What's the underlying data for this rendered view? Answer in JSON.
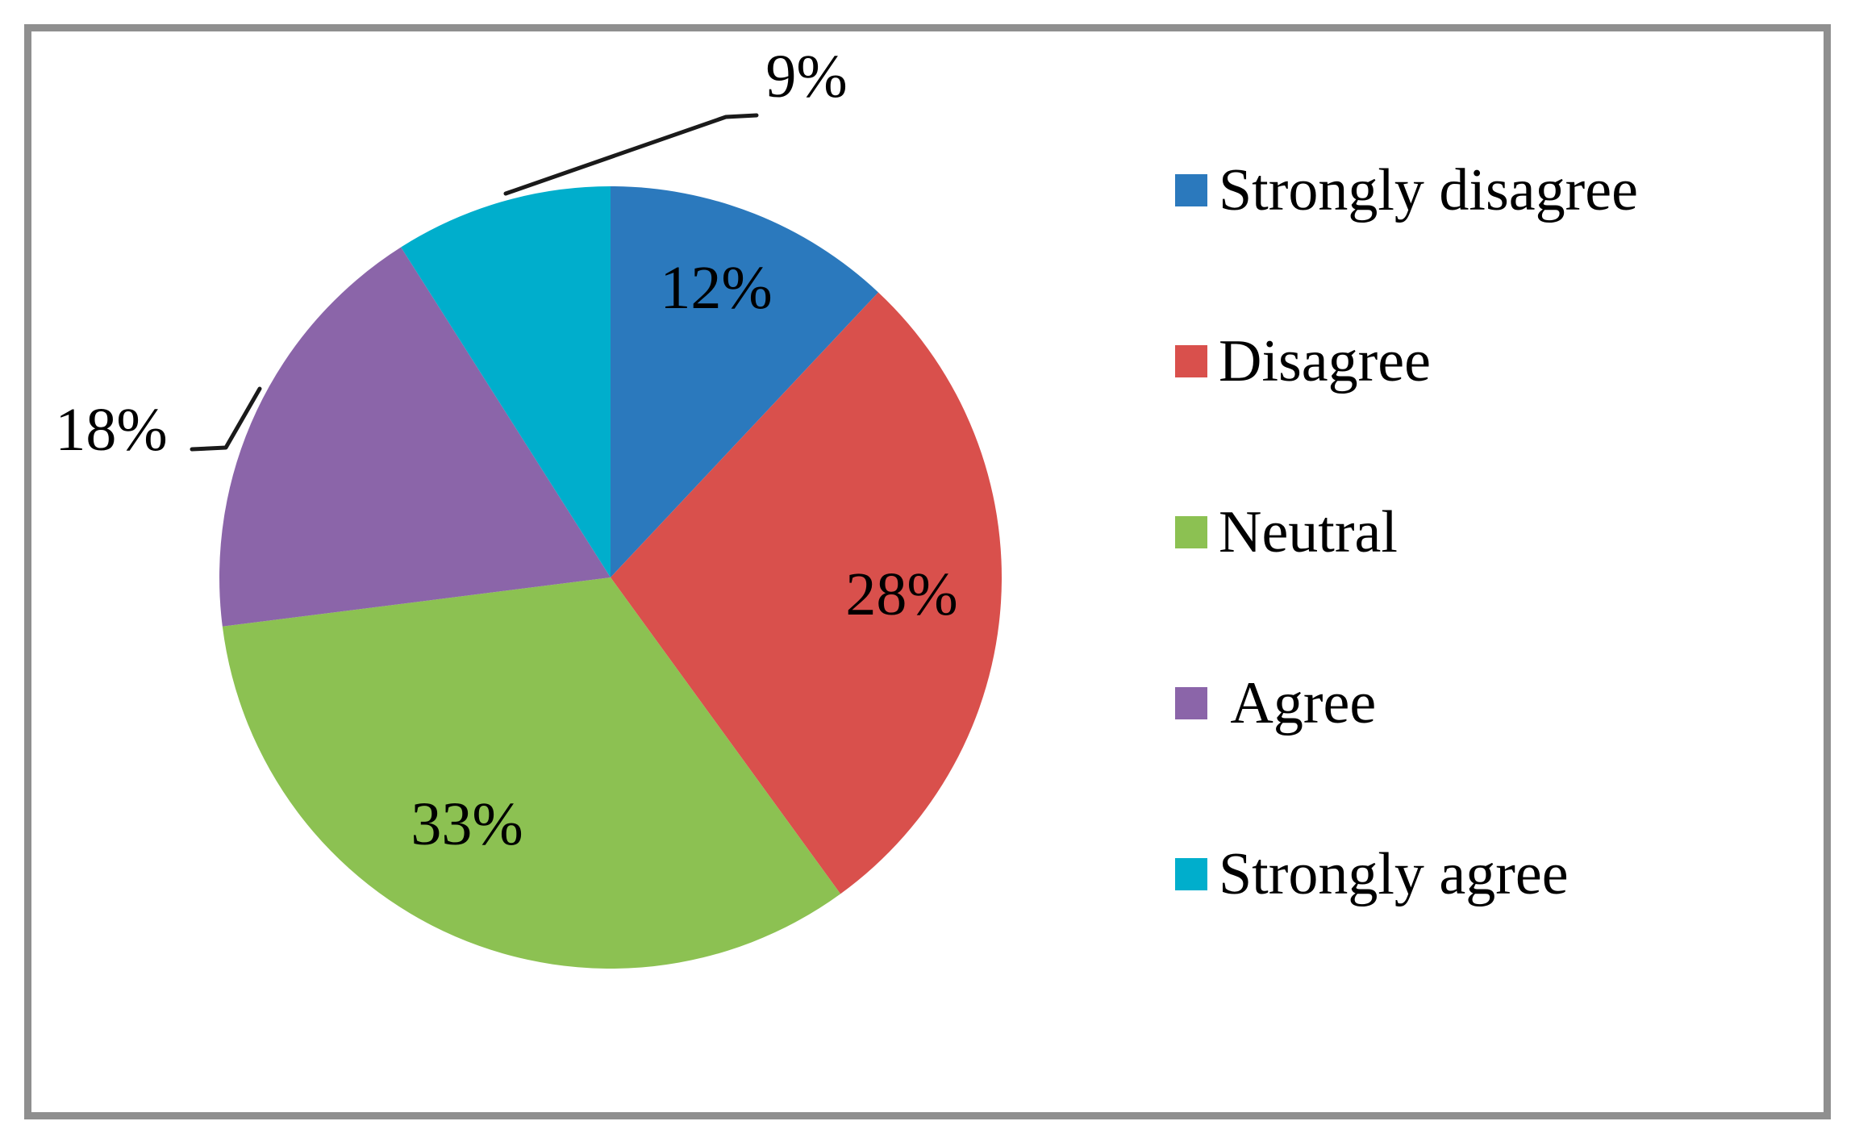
{
  "frame": {
    "border_color": "#8f8f8f",
    "background_color": "#ffffff"
  },
  "chart_data": {
    "type": "pie",
    "title": "",
    "categories": [
      "Strongly disagree",
      "Disagree",
      "Neutral",
      "Agree",
      "Strongly agree"
    ],
    "values": [
      12,
      28,
      33,
      18,
      9
    ],
    "unit": "%",
    "slice_labels": [
      "12%",
      "28%",
      "33%",
      "18%",
      "9%"
    ],
    "legend_labels": [
      "Strongly disagree",
      "Disagree",
      "Neutral",
      " Agree",
      "Strongly agree"
    ],
    "colors": [
      "#2b79bd",
      "#d9504c",
      "#8cc152",
      "#8b65a9",
      "#00aecc"
    ],
    "start_angle_deg": 0,
    "direction": "clockwise",
    "legend_position": "right",
    "label_style": "inside for large slices, outside with leader lines for Agree (18%) and Strongly agree (9%)",
    "leader_line_color": "#1a1a1a",
    "text_color": "#000000"
  }
}
